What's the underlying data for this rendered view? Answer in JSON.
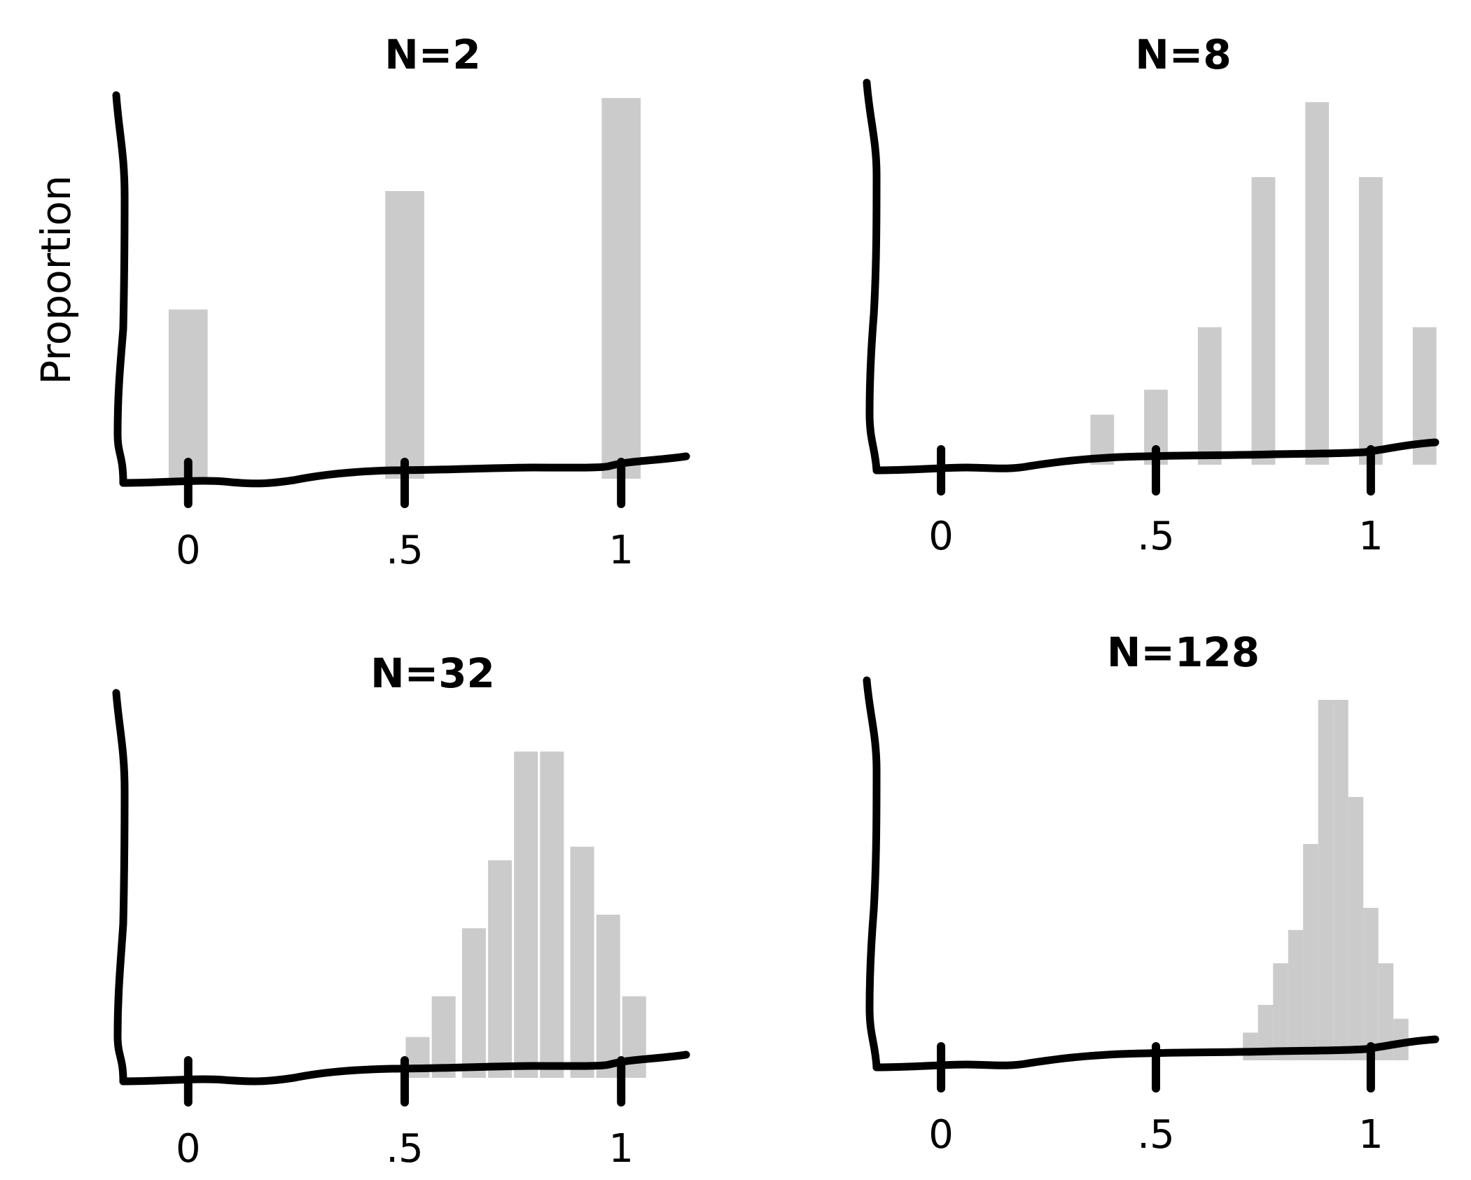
{
  "chart_data": [
    {
      "type": "bar",
      "title": "N=2",
      "ylabel": "Proportion",
      "xlim": [
        -0.15,
        1.15
      ],
      "ylim": [
        0,
        0.45
      ],
      "xticks": [
        0,
        0.5,
        1
      ],
      "xtick_labels": [
        "0",
        ".5",
        "1"
      ],
      "bar_width": 0.09,
      "x": [
        0,
        0.5,
        1
      ],
      "values": [
        0.2,
        0.34,
        0.45
      ],
      "bar_color": "#c8c8c8",
      "grid": false
    },
    {
      "type": "bar",
      "title": "N=8",
      "ylabel": "",
      "xlim": [
        -0.15,
        1.15
      ],
      "ylim": [
        0,
        0.3
      ],
      "xticks": [
        0,
        0.5,
        1
      ],
      "xtick_labels": [
        "0",
        ".5",
        "1"
      ],
      "bar_width": 0.055,
      "x": [
        0.375,
        0.5,
        0.625,
        0.75,
        0.875,
        1.0
      ],
      "values": [
        0.04,
        0.06,
        0.11,
        0.23,
        0.29,
        0.23
      ],
      "extra_x": [
        1.125
      ],
      "extra_values": [
        0.11
      ],
      "bar_color": "#c8c8c8",
      "grid": false
    },
    {
      "type": "bar",
      "title": "N=32",
      "ylabel": "",
      "xlim": [
        -0.15,
        1.15
      ],
      "ylim": [
        0,
        0.13
      ],
      "xticks": [
        0,
        0.5,
        1
      ],
      "xtick_labels": [
        "0",
        ".5",
        "1"
      ],
      "bar_width": 0.055,
      "x": [
        0.53,
        0.59,
        0.66,
        0.72,
        0.78,
        0.84,
        0.91,
        0.97,
        1.03
      ],
      "values": [
        0.015,
        0.03,
        0.055,
        0.08,
        0.12,
        0.12,
        0.085,
        0.06,
        0.03
      ],
      "bar_color": "#c8c8c8",
      "grid": false
    },
    {
      "type": "bar",
      "title": "N=128",
      "ylabel": "",
      "xlim": [
        -0.15,
        1.15
      ],
      "ylim": [
        0,
        0.13
      ],
      "xticks": [
        0,
        0.5,
        1
      ],
      "xtick_labels": [
        "0",
        ".5",
        "1"
      ],
      "bar_width": 0.035,
      "x": [
        0.72,
        0.755,
        0.79,
        0.825,
        0.86,
        0.895,
        0.93,
        0.965,
        1.0,
        1.035,
        1.07
      ],
      "values": [
        0.01,
        0.02,
        0.035,
        0.047,
        0.078,
        0.13,
        0.13,
        0.095,
        0.055,
        0.035,
        0.015
      ],
      "bar_color": "#c8c8c8",
      "grid": false
    }
  ]
}
